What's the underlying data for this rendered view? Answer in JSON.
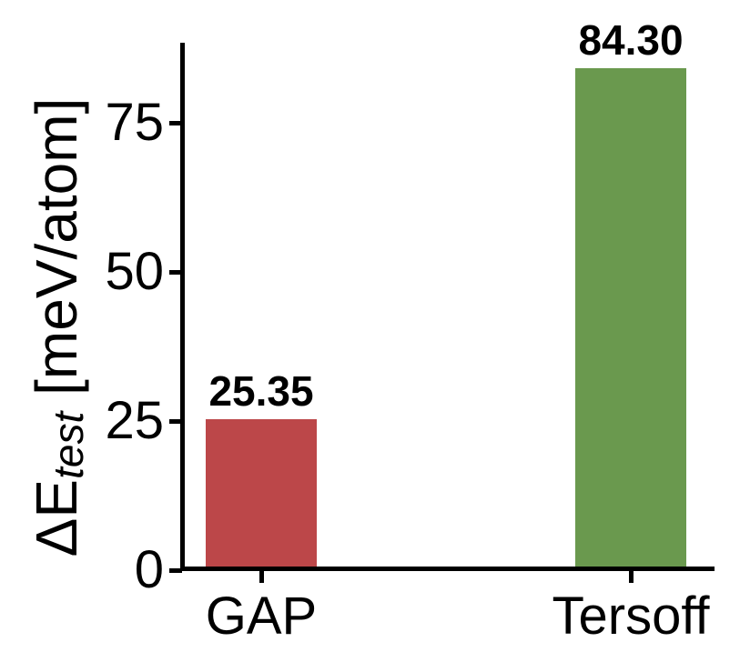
{
  "chart_data": {
    "type": "bar",
    "categories": [
      "GAP",
      "Tersoff"
    ],
    "values": [
      25.35,
      84.3
    ],
    "value_labels": [
      "25.35",
      "84.30"
    ],
    "bar_colors": [
      "#BC4749",
      "#6A994E"
    ],
    "ylabel": {
      "prefix": "ΔE",
      "subscript": "test",
      "suffix": " [meV/atom]"
    },
    "ylabel_text": "ΔE_test [meV/atom]",
    "xlabel": "",
    "yticks": [
      0,
      25,
      50,
      75
    ],
    "ytick_labels": [
      "0",
      "25",
      "50",
      "75"
    ],
    "ylim": [
      0,
      88.5
    ],
    "grid": false,
    "legend": null,
    "axis_color": "#000000",
    "text_color": "#000000",
    "background_color": "#ffffff"
  }
}
